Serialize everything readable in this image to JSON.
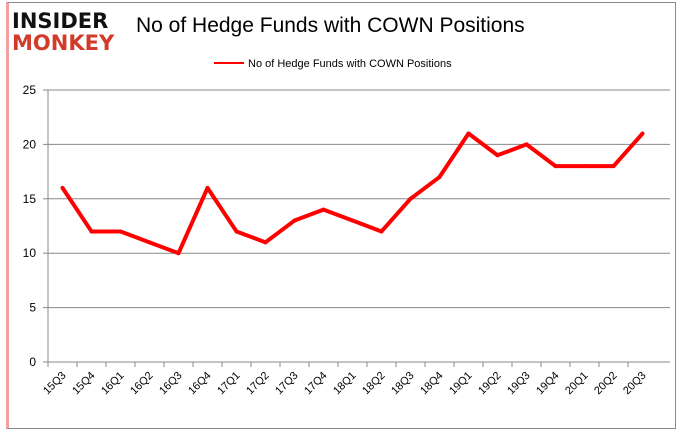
{
  "logo": {
    "line1": "INSIDER",
    "line2": "MONKEY"
  },
  "chart_data": {
    "type": "line",
    "title": "No of Hedge Funds with COWN Positions",
    "categories": [
      "15Q3",
      "15Q4",
      "16Q1",
      "16Q2",
      "16Q3",
      "16Q4",
      "17Q1",
      "17Q2",
      "17Q3",
      "17Q4",
      "18Q1",
      "18Q2",
      "18Q3",
      "18Q4",
      "19Q1",
      "19Q2",
      "19Q3",
      "19Q4",
      "20Q1",
      "20Q2",
      "20Q3"
    ],
    "series": [
      {
        "name": "No of Hedge Funds with COWN Positions",
        "values": [
          16,
          12,
          12,
          11,
          10,
          16,
          12,
          11,
          13,
          14,
          13,
          12,
          15,
          17,
          21,
          19,
          20,
          18,
          18,
          18,
          21
        ],
        "color": "#ff0000"
      }
    ],
    "ylim": [
      0,
      25
    ],
    "yticks": [
      0,
      5,
      10,
      15,
      20,
      25
    ],
    "grid": true,
    "legend": "top-center"
  }
}
